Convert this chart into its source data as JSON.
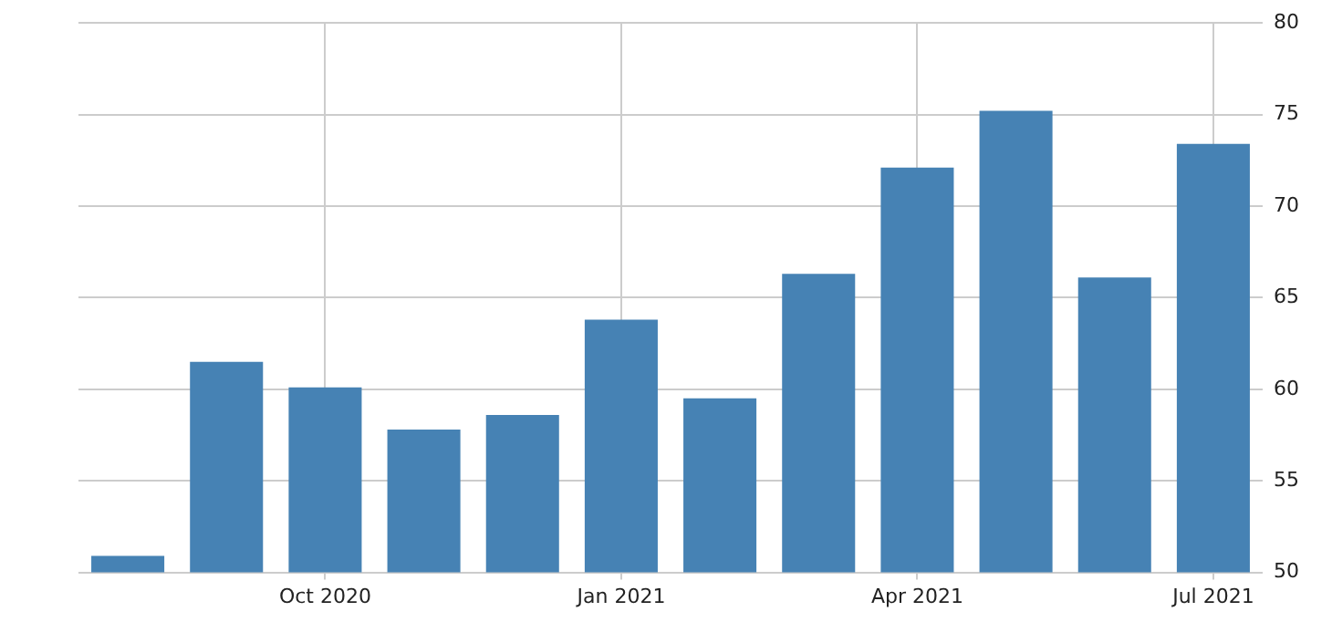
{
  "chart_data": {
    "type": "bar",
    "categories": [
      null,
      null,
      "Oct 2020",
      null,
      null,
      "Jan 2021",
      null,
      null,
      "Apr 2021",
      null,
      null,
      "Jul 2021"
    ],
    "values": [
      50.9,
      61.5,
      60.1,
      57.8,
      58.6,
      63.8,
      59.5,
      66.3,
      72.1,
      75.2,
      66.1,
      73.4
    ],
    "color": "#4682b4",
    "ylim": [
      50,
      80
    ],
    "yticks": [
      50,
      55,
      60,
      65,
      70,
      75,
      80
    ],
    "grid": true,
    "legend": false
  }
}
